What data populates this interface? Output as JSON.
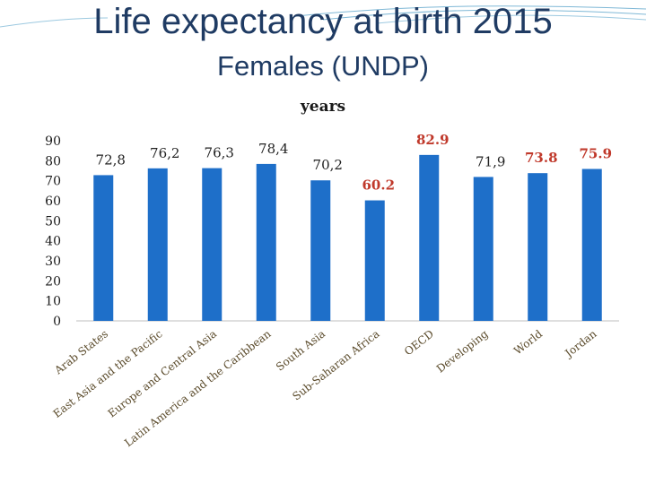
{
  "slide": {
    "title": "Life expectancy at birth 2015",
    "subtitle": "Females (UNDP)"
  },
  "colors": {
    "bar": "#1e6fc9",
    "label_dark": "#222222",
    "label_red": "#c0392b",
    "axis_text": "#1a1a1a",
    "category_text": "#5a4a2a",
    "title": "#1f3b63"
  },
  "chart_data": {
    "type": "bar",
    "title": "years",
    "xlabel": "",
    "ylabel": "",
    "ylim": [
      0,
      90
    ],
    "yticks": [
      "0",
      "10",
      "20",
      "30",
      "40",
      "50",
      "60",
      "70",
      "80",
      "90"
    ],
    "categories": [
      "Arab States",
      "East Asia and the Pacific",
      "Europe and Central Asia",
      "Latin America and the Caribbean",
      "South Asia",
      "Sub-Saharan Africa",
      "OECD",
      "Developing",
      "World",
      "Jordan"
    ],
    "values": [
      72.8,
      76.2,
      76.3,
      78.4,
      70.2,
      60.2,
      82.9,
      71.9,
      73.8,
      75.9
    ],
    "value_labels": [
      "72,8",
      "76,2",
      "76,3",
      "78,4",
      "70,2",
      "60.2",
      "82.9",
      "71,9",
      "73.8",
      "75.9"
    ],
    "label_highlight": [
      false,
      false,
      false,
      false,
      false,
      true,
      true,
      false,
      true,
      true
    ],
    "grid": false,
    "legend": "none"
  }
}
